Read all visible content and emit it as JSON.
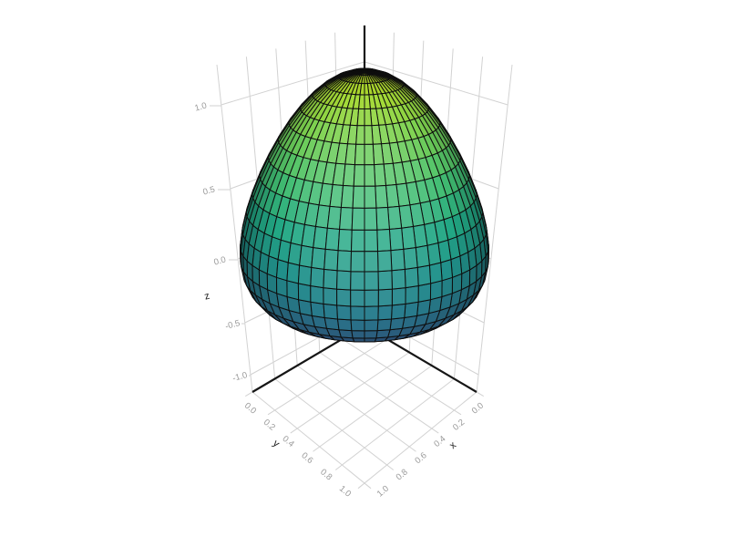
{
  "figure": {
    "background": "#ffffff"
  },
  "chart_data": {
    "type": "surface",
    "title": "",
    "surface": {
      "name": "egg-shaped-surface",
      "equation": "radius(z) = 0.5*sqrt((1-z^2)/(1+0.6*z)), z in [-1,1]",
      "center_xy": [
        0.5,
        0.5
      ],
      "z_range": [
        -1,
        1
      ],
      "max_radius": 0.53,
      "mesh": {
        "meridians": 56,
        "rings": 22
      },
      "shading": "diffuse wireframe facets colored by z"
    },
    "axes": {
      "x": {
        "title": "x",
        "ticks": [
          "0.0",
          "0.2",
          "0.4",
          "0.6",
          "0.8",
          "1.0"
        ],
        "tick_values": [
          0,
          0.2,
          0.4,
          0.6,
          0.8,
          1.0
        ],
        "range": [
          0,
          1
        ]
      },
      "y": {
        "title": "y",
        "ticks": [
          "0.0",
          "0.2",
          "0.4",
          "0.6",
          "0.8",
          "1.0"
        ],
        "tick_values": [
          0,
          0.2,
          0.4,
          0.6,
          0.8,
          1.0
        ],
        "range": [
          0,
          1
        ]
      },
      "z": {
        "title": "z",
        "ticks": [
          "1.0",
          "0.5",
          "0.0",
          "-0.5",
          "-1.0"
        ],
        "tick_values": [
          1,
          0.5,
          0,
          -0.5,
          -1
        ],
        "range": [
          -1.2,
          1.2
        ]
      }
    },
    "colormap": {
      "name": "viridis",
      "applied_range": [
        0.25,
        0.9
      ],
      "stops": [
        [
          0.0,
          "#440154"
        ],
        [
          0.1,
          "#482475"
        ],
        [
          0.2,
          "#414487"
        ],
        [
          0.3,
          "#355f8d"
        ],
        [
          0.4,
          "#2a788e"
        ],
        [
          0.5,
          "#21918c"
        ],
        [
          0.6,
          "#22a884"
        ],
        [
          0.7,
          "#44bf70"
        ],
        [
          0.8,
          "#7ad151"
        ],
        [
          0.9,
          "#bddf26"
        ],
        [
          1.0,
          "#fde725"
        ]
      ]
    },
    "layout": {
      "projection": "perspective",
      "azimuth_deg": 45,
      "elevation_deg": 20,
      "grid": true,
      "legend": false,
      "background": "#ffffff"
    }
  },
  "styles": {
    "grid_color": "#d2d2d2",
    "axis_line_color": "#161616",
    "tick_label_color": "#9a9a9a",
    "axis_title_color": "#1c1c1c",
    "facet_edge_color": "#0e0e0e"
  }
}
